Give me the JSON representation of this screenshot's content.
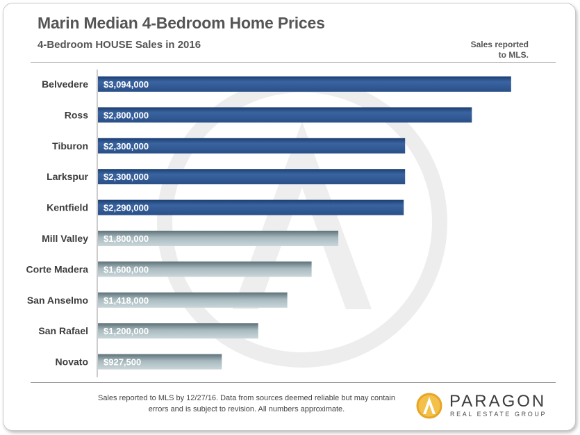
{
  "chart_data": {
    "type": "bar",
    "orientation": "horizontal",
    "title": "Marin Median 4-Bedroom Home Prices",
    "subtitle": "4-Bedroom HOUSE Sales in 2016",
    "categories": [
      "Belvedere",
      "Ross",
      "Tiburon",
      "Larkspur",
      "Kentfield",
      "Mill Valley",
      "Corte Madera",
      "San Anselmo",
      "San Rafael",
      "Novato"
    ],
    "values": [
      3094000,
      2800000,
      2300000,
      2300000,
      2290000,
      1800000,
      1600000,
      1418000,
      1200000,
      927500
    ],
    "data_labels": [
      "$3,094,000",
      "$2,800,000",
      "$2,300,000",
      "$2,300,000",
      "$2,290,000",
      "$1,800,000",
      "$1,600,000",
      "$1,418,000",
      "$1,200,000",
      "$927,500"
    ],
    "bar_colors": [
      "#2f5690",
      "#2f5690",
      "#2f5690",
      "#2f5690",
      "#2f5690",
      "#7f959c",
      "#7f959c",
      "#7f959c",
      "#7f959c",
      "#7f959c"
    ],
    "xlim": [
      0,
      3100000
    ],
    "grid": false,
    "legend": "none"
  },
  "note": {
    "line1": "Sales reported",
    "line2": "to MLS."
  },
  "footer": {
    "line1": "Sales reported to MLS by 12/27/16. Data from sources deemed reliable but may contain",
    "line2": "errors and is subject to revision. All numbers approximate."
  },
  "logo": {
    "name": "PARAGON",
    "tagline": "REAL ESTATE GROUP",
    "icon": "paragon-logo-icon",
    "colors": {
      "ring": "#e8a526",
      "fill": "#f3c04a"
    }
  },
  "watermark": {
    "icon": "paragon-watermark-icon",
    "color": "#ececec"
  }
}
